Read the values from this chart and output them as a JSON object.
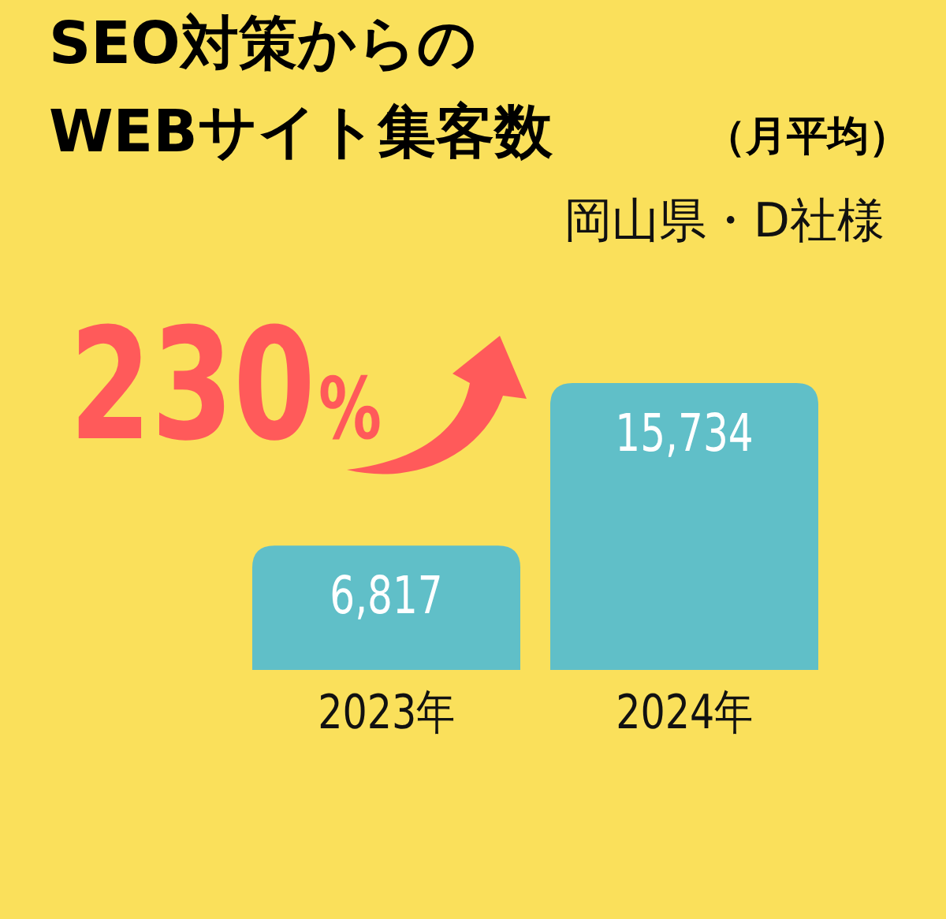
{
  "chart_data": {
    "type": "bar",
    "title": "SEO対策からの\nWEBサイト集客数",
    "subtitle": "（月平均）",
    "categories": [
      "2023年",
      "2024年"
    ],
    "values": [
      6817,
      15734
    ],
    "value_labels": [
      "6,817",
      "15,734"
    ],
    "color": "#60bfc8",
    "annotations": [
      "岡山県・D社様",
      "230%"
    ]
  }
}
